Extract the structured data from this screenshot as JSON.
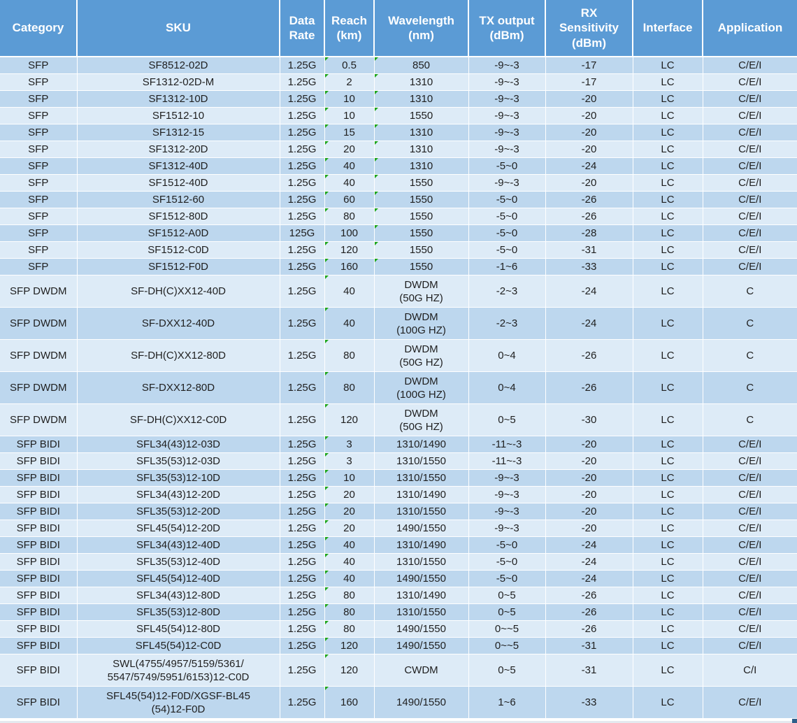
{
  "table": {
    "columns": [
      {
        "label": "Category"
      },
      {
        "label": "SKU"
      },
      {
        "label": "Data\nRate"
      },
      {
        "label": "Reach\n(km)"
      },
      {
        "label": "Wavelength\n(nm)"
      },
      {
        "label": "TX output\n(dBm)"
      },
      {
        "label": "RX\nSensitivity\n(dBm)"
      },
      {
        "label": "Interface"
      },
      {
        "label": "Application"
      }
    ],
    "rows": [
      {
        "category": "SFP",
        "sku": "SF8512-02D",
        "data_rate": "1.25G",
        "reach": "0.5",
        "wavelength": "850",
        "tx_output": "-9~-3",
        "rx_sensitivity": "-17",
        "interface": "LC",
        "application": "C/E/I",
        "reach_flag": true,
        "wavelength_flag": true
      },
      {
        "category": "SFP",
        "sku": "SF1312-02D-M",
        "data_rate": "1.25G",
        "reach": "2",
        "wavelength": "1310",
        "tx_output": "-9~-3",
        "rx_sensitivity": "-17",
        "interface": "LC",
        "application": "C/E/I",
        "reach_flag": true,
        "wavelength_flag": true
      },
      {
        "category": "SFP",
        "sku": "SF1312-10D",
        "data_rate": "1.25G",
        "reach": "10",
        "wavelength": "1310",
        "tx_output": "-9~-3",
        "rx_sensitivity": "-20",
        "interface": "LC",
        "application": "C/E/I",
        "reach_flag": true,
        "wavelength_flag": true
      },
      {
        "category": "SFP",
        "sku": "SF1512-10",
        "data_rate": "1.25G",
        "reach": "10",
        "wavelength": "1550",
        "tx_output": "-9~-3",
        "rx_sensitivity": "-20",
        "interface": "LC",
        "application": "C/E/I",
        "reach_flag": true,
        "wavelength_flag": true
      },
      {
        "category": "SFP",
        "sku": "SF1312-15",
        "data_rate": "1.25G",
        "reach": "15",
        "wavelength": "1310",
        "tx_output": "-9~-3",
        "rx_sensitivity": "-20",
        "interface": "LC",
        "application": "C/E/I",
        "reach_flag": true,
        "wavelength_flag": true
      },
      {
        "category": "SFP",
        "sku": "SF1312-20D",
        "data_rate": "1.25G",
        "reach": "20",
        "wavelength": "1310",
        "tx_output": "-9~-3",
        "rx_sensitivity": "-20",
        "interface": "LC",
        "application": "C/E/I",
        "reach_flag": true,
        "wavelength_flag": true
      },
      {
        "category": "SFP",
        "sku": "SF1312-40D",
        "data_rate": "1.25G",
        "reach": "40",
        "wavelength": "1310",
        "tx_output": "-5~0",
        "rx_sensitivity": "-24",
        "interface": "LC",
        "application": "C/E/I",
        "reach_flag": true,
        "wavelength_flag": true
      },
      {
        "category": "SFP",
        "sku": "SF1512-40D",
        "data_rate": "1.25G",
        "reach": "40",
        "wavelength": "1550",
        "tx_output": "-9~-3",
        "rx_sensitivity": "-20",
        "interface": "LC",
        "application": "C/E/I",
        "reach_flag": true,
        "wavelength_flag": true
      },
      {
        "category": "SFP",
        "sku": "SF1512-60",
        "data_rate": "1.25G",
        "reach": "60",
        "wavelength": "1550",
        "tx_output": "-5~0",
        "rx_sensitivity": "-26",
        "interface": "LC",
        "application": "C/E/I",
        "reach_flag": true,
        "wavelength_flag": true
      },
      {
        "category": "SFP",
        "sku": "SF1512-80D",
        "data_rate": "1.25G",
        "reach": "80",
        "wavelength": "1550",
        "tx_output": "-5~0",
        "rx_sensitivity": "-26",
        "interface": "LC",
        "application": "C/E/I",
        "reach_flag": true,
        "wavelength_flag": true
      },
      {
        "category": "SFP",
        "sku": "SF1512-A0D",
        "data_rate": "125G",
        "reach": "100",
        "wavelength": "1550",
        "tx_output": "-5~0",
        "rx_sensitivity": "-28",
        "interface": "LC",
        "application": "C/E/I",
        "reach_flag": false,
        "wavelength_flag": true
      },
      {
        "category": "SFP",
        "sku": "SF1512-C0D",
        "data_rate": "1.25G",
        "reach": "120",
        "wavelength": "1550",
        "tx_output": "-5~0",
        "rx_sensitivity": "-31",
        "interface": "LC",
        "application": "C/E/I",
        "reach_flag": true,
        "wavelength_flag": true
      },
      {
        "category": "SFP",
        "sku": "SF1512-F0D",
        "data_rate": "1.25G",
        "reach": "160",
        "wavelength": "1550",
        "tx_output": "-1~6",
        "rx_sensitivity": "-33",
        "interface": "LC",
        "application": "C/E/I",
        "reach_flag": true,
        "wavelength_flag": true
      },
      {
        "category": "SFP DWDM",
        "sku": "SF-DH(C)XX12-40D",
        "data_rate": "1.25G",
        "reach": "40",
        "wavelength": "DWDM\n(50G HZ)",
        "tx_output": "-2~3",
        "rx_sensitivity": "-24",
        "interface": "LC",
        "application": "C",
        "reach_flag": true,
        "wavelength_flag": false
      },
      {
        "category": "SFP DWDM",
        "sku": "SF-DXX12-40D",
        "data_rate": "1.25G",
        "reach": "40",
        "wavelength": "DWDM\n(100G HZ)",
        "tx_output": "-2~3",
        "rx_sensitivity": "-24",
        "interface": "LC",
        "application": "C",
        "reach_flag": true,
        "wavelength_flag": false
      },
      {
        "category": "SFP DWDM",
        "sku": "SF-DH(C)XX12-80D",
        "data_rate": "1.25G",
        "reach": "80",
        "wavelength": "DWDM\n(50G HZ)",
        "tx_output": "0~4",
        "rx_sensitivity": "-26",
        "interface": "LC",
        "application": "C",
        "reach_flag": true,
        "wavelength_flag": false
      },
      {
        "category": "SFP DWDM",
        "sku": "SF-DXX12-80D",
        "data_rate": "1.25G",
        "reach": "80",
        "wavelength": "DWDM\n(100G HZ)",
        "tx_output": "0~4",
        "rx_sensitivity": "-26",
        "interface": "LC",
        "application": "C",
        "reach_flag": true,
        "wavelength_flag": false
      },
      {
        "category": "SFP DWDM",
        "sku": "SF-DH(C)XX12-C0D",
        "data_rate": "1.25G",
        "reach": "120",
        "wavelength": "DWDM\n(50G HZ)",
        "tx_output": "0~5",
        "rx_sensitivity": "-30",
        "interface": "LC",
        "application": "C",
        "reach_flag": true,
        "wavelength_flag": false
      },
      {
        "category": "SFP BIDI",
        "sku": "SFL34(43)12-03D",
        "data_rate": "1.25G",
        "reach": "3",
        "wavelength": "1310/1490",
        "tx_output": "-11~-3",
        "rx_sensitivity": "-20",
        "interface": "LC",
        "application": "C/E/I",
        "reach_flag": true,
        "wavelength_flag": false
      },
      {
        "category": "SFP BIDI",
        "sku": "SFL35(53)12-03D",
        "data_rate": "1.25G",
        "reach": "3",
        "wavelength": "1310/1550",
        "tx_output": "-11~-3",
        "rx_sensitivity": "-20",
        "interface": "LC",
        "application": "C/E/I",
        "reach_flag": true,
        "wavelength_flag": false
      },
      {
        "category": "SFP BIDI",
        "sku": "SFL35(53)12-10D",
        "data_rate": "1.25G",
        "reach": "10",
        "wavelength": "1310/1550",
        "tx_output": "-9~-3",
        "rx_sensitivity": "-20",
        "interface": "LC",
        "application": "C/E/I",
        "reach_flag": true,
        "wavelength_flag": false
      },
      {
        "category": "SFP BIDI",
        "sku": "SFL34(43)12-20D",
        "data_rate": "1.25G",
        "reach": "20",
        "wavelength": "1310/1490",
        "tx_output": "-9~-3",
        "rx_sensitivity": "-20",
        "interface": "LC",
        "application": "C/E/I",
        "reach_flag": true,
        "wavelength_flag": false
      },
      {
        "category": "SFP BIDI",
        "sku": "SFL35(53)12-20D",
        "data_rate": "1.25G",
        "reach": "20",
        "wavelength": "1310/1550",
        "tx_output": "-9~-3",
        "rx_sensitivity": "-20",
        "interface": "LC",
        "application": "C/E/I",
        "reach_flag": true,
        "wavelength_flag": false
      },
      {
        "category": "SFP BIDI",
        "sku": "SFL45(54)12-20D",
        "data_rate": "1.25G",
        "reach": "20",
        "wavelength": "1490/1550",
        "tx_output": "-9~-3",
        "rx_sensitivity": "-20",
        "interface": "LC",
        "application": "C/E/I",
        "reach_flag": true,
        "wavelength_flag": false
      },
      {
        "category": "SFP BIDI",
        "sku": "SFL34(43)12-40D",
        "data_rate": "1.25G",
        "reach": "40",
        "wavelength": "1310/1490",
        "tx_output": "-5~0",
        "rx_sensitivity": "-24",
        "interface": "LC",
        "application": "C/E/I",
        "reach_flag": true,
        "wavelength_flag": false
      },
      {
        "category": "SFP BIDI",
        "sku": "SFL35(53)12-40D",
        "data_rate": "1.25G",
        "reach": "40",
        "wavelength": "1310/1550",
        "tx_output": "-5~0",
        "rx_sensitivity": "-24",
        "interface": "LC",
        "application": "C/E/I",
        "reach_flag": true,
        "wavelength_flag": false
      },
      {
        "category": "SFP BIDI",
        "sku": "SFL45(54)12-40D",
        "data_rate": "1.25G",
        "reach": "40",
        "wavelength": "1490/1550",
        "tx_output": "-5~0",
        "rx_sensitivity": "-24",
        "interface": "LC",
        "application": "C/E/I",
        "reach_flag": true,
        "wavelength_flag": false
      },
      {
        "category": "SFP BIDI",
        "sku": "SFL34(43)12-80D",
        "data_rate": "1.25G",
        "reach": "80",
        "wavelength": "1310/1490",
        "tx_output": "0~5",
        "rx_sensitivity": "-26",
        "interface": "LC",
        "application": "C/E/I",
        "reach_flag": true,
        "wavelength_flag": false
      },
      {
        "category": "SFP BIDI",
        "sku": "SFL35(53)12-80D",
        "data_rate": "1.25G",
        "reach": "80",
        "wavelength": "1310/1550",
        "tx_output": "0~5",
        "rx_sensitivity": "-26",
        "interface": "LC",
        "application": "C/E/I",
        "reach_flag": true,
        "wavelength_flag": false
      },
      {
        "category": "SFP BIDI",
        "sku": "SFL45(54)12-80D",
        "data_rate": "1.25G",
        "reach": "80",
        "wavelength": "1490/1550",
        "tx_output": "0~~5",
        "rx_sensitivity": "-26",
        "interface": "LC",
        "application": "C/E/I",
        "reach_flag": true,
        "wavelength_flag": false
      },
      {
        "category": "SFP BIDI",
        "sku": "SFL45(54)12-C0D",
        "data_rate": "1.25G",
        "reach": "120",
        "wavelength": "1490/1550",
        "tx_output": "0~~5",
        "rx_sensitivity": "-31",
        "interface": "LC",
        "application": "C/E/I",
        "reach_flag": true,
        "wavelength_flag": false
      },
      {
        "category": "SFP BIDI",
        "sku": "SWL(4755/4957/5159/5361/\n5547/5749/5951/6153)12-C0D",
        "data_rate": "1.25G",
        "reach": "120",
        "wavelength": "CWDM",
        "tx_output": "0~5",
        "rx_sensitivity": "-31",
        "interface": "LC",
        "application": "C/I",
        "reach_flag": true,
        "wavelength_flag": false
      },
      {
        "category": "SFP BIDI",
        "sku": "SFL45(54)12-F0D/XGSF-BL45\n(54)12-F0D",
        "data_rate": "1.25G",
        "reach": "160",
        "wavelength": "1490/1550",
        "tx_output": "1~6",
        "rx_sensitivity": "-33",
        "interface": "LC",
        "application": "C/E/I",
        "reach_flag": true,
        "wavelength_flag": false
      }
    ]
  },
  "colors": {
    "header_bg": "#5b9bd5",
    "header_text": "#ffffff",
    "row_odd_bg": "#bdd7ee",
    "row_even_bg": "#ddebf7",
    "cell_text": "#1f1f1f",
    "grid_line": "#ffffff",
    "error_indicator": "#1da51d",
    "corner_mark": "#2e5f8a"
  },
  "icons": {
    "error_indicator": "green-triangle"
  }
}
